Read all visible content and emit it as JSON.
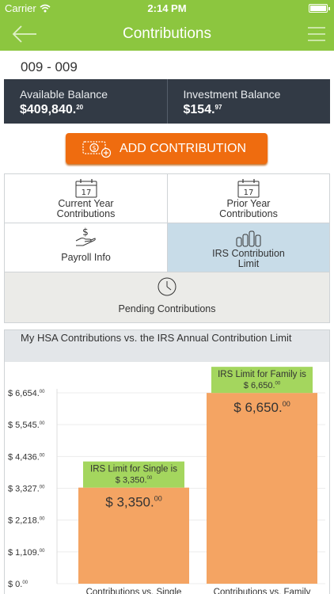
{
  "status_bar": {
    "carrier": "Carrier",
    "time": "2:14 PM"
  },
  "nav": {
    "title": "Contributions",
    "back_icon": "back-arrow-icon",
    "menu_icon": "hamburger-menu-icon"
  },
  "account": {
    "id": "009 - 009"
  },
  "balances": [
    {
      "label": "Available Balance",
      "amount": "$409,840.",
      "cents": "20"
    },
    {
      "label": "Investment Balance",
      "amount": "$154.",
      "cents": "97"
    }
  ],
  "add_button": {
    "label": "ADD CONTRIBUTION"
  },
  "menu_grid": {
    "current_year": {
      "line1": "Current Year",
      "line2": "Contributions",
      "icon_day": "17"
    },
    "prior_year": {
      "line1": "Prior Year",
      "line2": "Contributions",
      "icon_day": "17"
    },
    "payroll": {
      "label": "Payroll Info"
    },
    "irs_limit": {
      "line1": "IRS Contribution",
      "line2": "Limit"
    },
    "pending": {
      "label": "Pending Contributions"
    }
  },
  "colors": {
    "brand_green": "#8cc63f",
    "accent_orange": "#ef6c0f",
    "bar_orange": "#f4a463",
    "label_green": "#a4d65e",
    "dark_panel": "#323a45",
    "selected_cell": "#c8dce8"
  },
  "chart_data": {
    "type": "bar",
    "title": "My HSA Contributions vs. the IRS Annual Contribution Limit",
    "categories": [
      "Contributions vs. Single",
      "Contributions vs. Family"
    ],
    "values": [
      3350,
      6650
    ],
    "value_labels": [
      "$ 3,350.00",
      "$ 6,650.00"
    ],
    "limit_labels": [
      {
        "line1": "IRS Limit for Single is",
        "line2": "$ 3,350.00"
      },
      {
        "line1": "IRS Limit for Family is",
        "line2": "$ 6,650.00"
      }
    ],
    "y_ticks": [
      {
        "value": 0,
        "label": "$ 0.",
        "sup": "00"
      },
      {
        "value": 1109,
        "label": "$ 1,109.",
        "sup": "00"
      },
      {
        "value": 2218,
        "label": "$ 2,218.",
        "sup": "00"
      },
      {
        "value": 3327,
        "label": "$ 3,327.",
        "sup": "00"
      },
      {
        "value": 4436,
        "label": "$ 4,436.",
        "sup": "00"
      },
      {
        "value": 5545,
        "label": "$ 5,545.",
        "sup": "00"
      },
      {
        "value": 6654,
        "label": "$ 6,654.",
        "sup": "00"
      }
    ],
    "ylim": [
      0,
      6654
    ],
    "grid": true
  }
}
